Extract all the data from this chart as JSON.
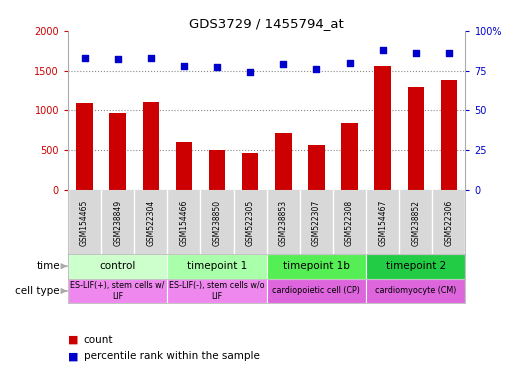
{
  "title": "GDS3729 / 1455794_at",
  "samples": [
    "GSM154465",
    "GSM238849",
    "GSM522304",
    "GSM154466",
    "GSM238850",
    "GSM522305",
    "GSM238853",
    "GSM522307",
    "GSM522308",
    "GSM154467",
    "GSM238852",
    "GSM522306"
  ],
  "counts": [
    1090,
    970,
    1110,
    605,
    505,
    470,
    715,
    560,
    840,
    1560,
    1295,
    1385
  ],
  "percentile_ranks": [
    83,
    82,
    83,
    78,
    77,
    74,
    79,
    76,
    80,
    88,
    86,
    86
  ],
  "ylim_left": [
    0,
    2000
  ],
  "ylim_right": [
    0,
    100
  ],
  "yticks_left": [
    0,
    500,
    1000,
    1500,
    2000
  ],
  "yticks_right": [
    0,
    25,
    50,
    75,
    100
  ],
  "bar_color": "#cc0000",
  "dot_color": "#0000cc",
  "grid_color": "#888888",
  "time_groups": [
    {
      "label": "control",
      "start": 0,
      "end": 3,
      "color": "#ccffcc"
    },
    {
      "label": "timepoint 1",
      "start": 3,
      "end": 6,
      "color": "#aaffaa"
    },
    {
      "label": "timepoint 1b",
      "start": 6,
      "end": 9,
      "color": "#55ee55"
    },
    {
      "label": "timepoint 2",
      "start": 9,
      "end": 12,
      "color": "#22cc44"
    }
  ],
  "cell_type_groups": [
    {
      "label": "ES-LIF(+), stem cells w/\nLIF",
      "start": 0,
      "end": 3,
      "color": "#ee88ee"
    },
    {
      "label": "ES-LIF(-), stem cells w/o\nLIF",
      "start": 3,
      "end": 6,
      "color": "#ee88ee"
    },
    {
      "label": "cardiopoietic cell (CP)",
      "start": 6,
      "end": 9,
      "color": "#dd66dd"
    },
    {
      "label": "cardiomyocyte (CM)",
      "start": 9,
      "end": 12,
      "color": "#dd66dd"
    }
  ],
  "bg_color": "#d8d8d8",
  "legend_count_color": "#cc0000",
  "legend_pct_color": "#0000cc"
}
